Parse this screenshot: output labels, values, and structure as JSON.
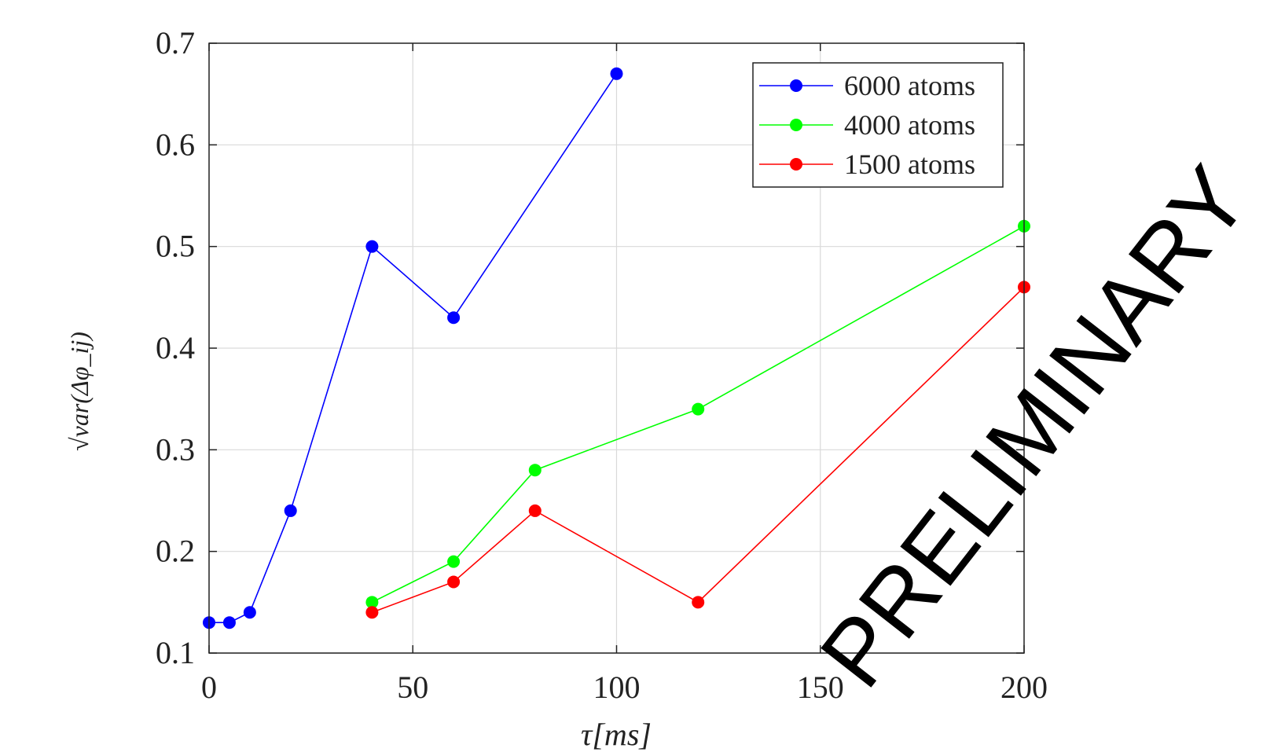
{
  "chart_data": {
    "type": "line",
    "title": "",
    "xlabel": "τ[ms]",
    "ylabel": "√var(Δφ_ij)",
    "xlim": [
      0,
      200
    ],
    "ylim": [
      0.1,
      0.7
    ],
    "xticks": [
      0,
      50,
      100,
      150,
      200
    ],
    "yticks": [
      0.1,
      0.2,
      0.3,
      0.4,
      0.5,
      0.6,
      0.7
    ],
    "xtick_labels": [
      "0",
      "50",
      "100",
      "150",
      "200"
    ],
    "ytick_labels": [
      "0.1",
      "0.2",
      "0.3",
      "0.4",
      "0.5",
      "0.6",
      "0.7"
    ],
    "grid": true,
    "legend_position": "top-right",
    "watermark": "PRELIMINARY",
    "series": [
      {
        "name": "6000 atoms",
        "color": "#0000ff",
        "x": [
          0,
          5,
          10,
          20,
          40,
          60,
          100
        ],
        "y": [
          0.13,
          0.13,
          0.14,
          0.24,
          0.5,
          0.43,
          0.67
        ]
      },
      {
        "name": "4000 atoms",
        "color": "#00ff00",
        "x": [
          40,
          60,
          80,
          120,
          200
        ],
        "y": [
          0.15,
          0.19,
          0.28,
          0.34,
          0.52
        ]
      },
      {
        "name": "1500 atoms",
        "color": "#ff0000",
        "x": [
          40,
          60,
          80,
          120,
          200
        ],
        "y": [
          0.14,
          0.17,
          0.24,
          0.15,
          0.46
        ]
      }
    ]
  }
}
